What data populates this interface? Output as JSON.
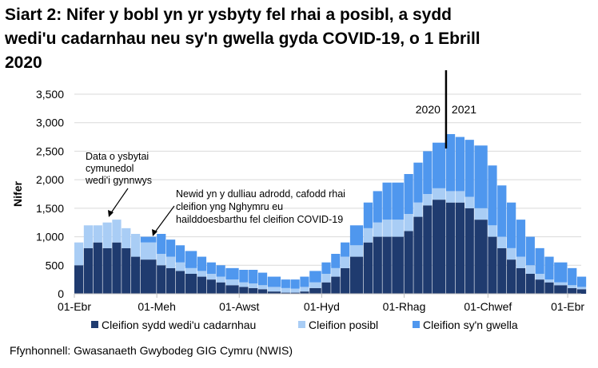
{
  "chart_data": {
    "type": "bar",
    "stacked": true,
    "title": "Siart 2: Nifer y bobl yn yr ysbyty fel rhai a posibl, a sydd wedi'u cadarnhau neu sy'n gwella gyda COVID-19, o 1 Ebrill 2020",
    "ylabel": "Nifer",
    "xlabel": "",
    "ylim": [
      0,
      3500
    ],
    "yticks": [
      0,
      500,
      1000,
      1500,
      2000,
      2500,
      3000,
      3500
    ],
    "ytick_labels": [
      "0",
      "500",
      "1,000",
      "1,500",
      "2,000",
      "2,500",
      "3,000",
      "3,500"
    ],
    "xlim": [
      "2020-04-01",
      "2021-04-11"
    ],
    "xticks": [
      "2020-04-01",
      "2020-06-01",
      "2020-08-01",
      "2020-10-01",
      "2020-12-01",
      "2021-02-01",
      "2021-04-01"
    ],
    "xtick_labels": [
      "01-Ebr",
      "01-Meh",
      "01-Awst",
      "01-Hyd",
      "01-Rhag",
      "01-Chwef",
      "01-Ebr"
    ],
    "grid": "horizontal",
    "legend_position": "bottom",
    "x": [
      "2020-04-01",
      "2020-04-08",
      "2020-04-15",
      "2020-04-22",
      "2020-04-29",
      "2020-05-06",
      "2020-05-13",
      "2020-05-20",
      "2020-06-01",
      "2020-06-08",
      "2020-06-15",
      "2020-06-22",
      "2020-07-01",
      "2020-07-08",
      "2020-07-15",
      "2020-07-22",
      "2020-08-01",
      "2020-08-08",
      "2020-08-15",
      "2020-08-22",
      "2020-09-01",
      "2020-09-08",
      "2020-09-15",
      "2020-09-22",
      "2020-10-01",
      "2020-10-08",
      "2020-10-15",
      "2020-10-22",
      "2020-11-01",
      "2020-11-08",
      "2020-11-15",
      "2020-11-22",
      "2020-12-01",
      "2020-12-08",
      "2020-12-15",
      "2020-12-22",
      "2021-01-01",
      "2021-01-08",
      "2021-01-15",
      "2021-01-22",
      "2021-02-01",
      "2021-02-08",
      "2021-02-15",
      "2021-02-22",
      "2021-03-01",
      "2021-03-08",
      "2021-03-15",
      "2021-03-22",
      "2021-04-01",
      "2021-04-08"
    ],
    "series": [
      {
        "name": "Cleifion sydd wedi'u cadarnhau",
        "color": "#1f3b6f",
        "values": [
          500,
          800,
          900,
          800,
          900,
          800,
          650,
          600,
          500,
          450,
          400,
          350,
          300,
          250,
          200,
          150,
          120,
          100,
          80,
          40,
          20,
          20,
          40,
          100,
          200,
          300,
          450,
          650,
          900,
          1000,
          1000,
          1000,
          1100,
          1350,
          1550,
          1650,
          1600,
          1600,
          1500,
          1300,
          1000,
          800,
          600,
          450,
          350,
          250,
          200,
          150,
          100,
          80
        ]
      },
      {
        "name": "Cleifion posibl",
        "color": "#a9cdf5",
        "values": [
          400,
          400,
          300,
          450,
          400,
          350,
          400,
          300,
          200,
          200,
          150,
          100,
          100,
          100,
          100,
          100,
          80,
          80,
          70,
          80,
          80,
          70,
          80,
          100,
          150,
          150,
          200,
          200,
          250,
          250,
          300,
          300,
          300,
          250,
          200,
          200,
          200,
          200,
          200,
          200,
          200,
          200,
          200,
          200,
          150,
          100,
          50,
          50,
          50,
          40
        ]
      },
      {
        "name": "Cleifion sy'n gwella",
        "color": "#4f97ee",
        "values": [
          0,
          0,
          0,
          0,
          0,
          0,
          0,
          100,
          350,
          300,
          300,
          300,
          250,
          200,
          200,
          200,
          220,
          240,
          220,
          180,
          150,
          160,
          180,
          200,
          200,
          250,
          250,
          350,
          450,
          550,
          650,
          650,
          700,
          700,
          750,
          800,
          1000,
          950,
          1000,
          1100,
          1050,
          900,
          800,
          650,
          500,
          450,
          400,
          350,
          300,
          180
        ]
      }
    ],
    "divider": {
      "date": "2021-01-01",
      "left_label": "2020",
      "right_label": "2021"
    },
    "annotations": [
      {
        "text": [
          "Data o ysbytai",
          "cymunedol",
          "wedi'i gynnwys"
        ],
        "date": "2020-04-29"
      },
      {
        "text": [
          "Newid yn y dulliau adrodd, cafodd rhai",
          "cleifion yng Nghymru eu",
          "hailddoesbarthu fel cleifion COVID-19"
        ],
        "date": "2020-05-27"
      }
    ]
  },
  "source": "Ffynhonnell: Gwasanaeth Gwybodeg GIG Cymru (NWIS)"
}
